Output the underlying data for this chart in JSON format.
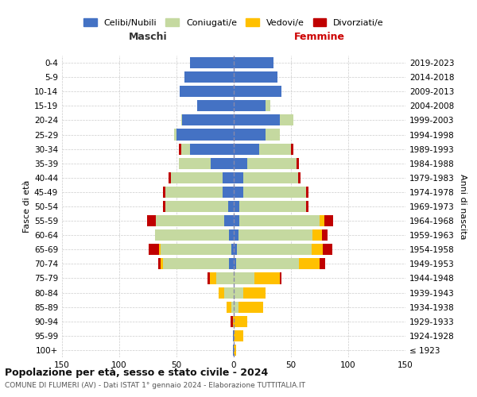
{
  "age_groups": [
    "100+",
    "95-99",
    "90-94",
    "85-89",
    "80-84",
    "75-79",
    "70-74",
    "65-69",
    "60-64",
    "55-59",
    "50-54",
    "45-49",
    "40-44",
    "35-39",
    "30-34",
    "25-29",
    "20-24",
    "15-19",
    "10-14",
    "5-9",
    "0-4"
  ],
  "birth_years": [
    "≤ 1923",
    "1924-1928",
    "1929-1933",
    "1934-1938",
    "1939-1943",
    "1944-1948",
    "1949-1953",
    "1954-1958",
    "1959-1963",
    "1964-1968",
    "1969-1973",
    "1974-1978",
    "1979-1983",
    "1984-1988",
    "1989-1993",
    "1994-1998",
    "1999-2003",
    "2004-2008",
    "2009-2013",
    "2014-2018",
    "2019-2023"
  ],
  "maschi": {
    "celibi": [
      1,
      1,
      0,
      0,
      0,
      0,
      4,
      2,
      4,
      8,
      5,
      10,
      10,
      20,
      38,
      50,
      45,
      32,
      47,
      43,
      38
    ],
    "coniugati": [
      0,
      0,
      0,
      2,
      8,
      15,
      58,
      62,
      65,
      60,
      55,
      50,
      45,
      28,
      8,
      2,
      1,
      0,
      0,
      0,
      0
    ],
    "vedovi": [
      0,
      0,
      1,
      4,
      5,
      6,
      2,
      1,
      0,
      0,
      0,
      0,
      0,
      0,
      0,
      0,
      0,
      0,
      0,
      0,
      0
    ],
    "divorziati": [
      0,
      0,
      2,
      0,
      0,
      2,
      2,
      9,
      0,
      8,
      2,
      2,
      2,
      0,
      2,
      0,
      0,
      0,
      0,
      0,
      0
    ]
  },
  "femmine": {
    "nubili": [
      0,
      0,
      0,
      0,
      0,
      0,
      2,
      3,
      4,
      5,
      5,
      8,
      8,
      12,
      22,
      28,
      40,
      28,
      42,
      38,
      35
    ],
    "coniugate": [
      0,
      0,
      0,
      4,
      8,
      18,
      55,
      65,
      65,
      70,
      58,
      55,
      48,
      43,
      28,
      12,
      12,
      4,
      0,
      0,
      0
    ],
    "vedove": [
      2,
      8,
      12,
      22,
      20,
      22,
      18,
      10,
      8,
      4,
      0,
      0,
      0,
      0,
      0,
      0,
      0,
      0,
      0,
      0,
      0
    ],
    "divorziate": [
      0,
      0,
      0,
      0,
      0,
      2,
      5,
      8,
      5,
      8,
      2,
      2,
      2,
      2,
      2,
      0,
      0,
      0,
      0,
      0,
      0
    ]
  },
  "colors": {
    "celibi_nubili": "#4472c4",
    "coniugati": "#c5d9a0",
    "vedovi": "#ffc000",
    "divorziati": "#c00000"
  },
  "xlim": 150,
  "title": "Popolazione per età, sesso e stato civile - 2024",
  "subtitle": "COMUNE DI FLUMERI (AV) - Dati ISTAT 1° gennaio 2024 - Elaborazione TUTTITALIA.IT",
  "ylabel_left": "Fasce di età",
  "ylabel_right": "Anni di nascita",
  "xlabel_left": "Maschi",
  "xlabel_right": "Femmine",
  "legend_labels": [
    "Celibi/Nubili",
    "Coniugati/e",
    "Vedovi/e",
    "Divorziati/e"
  ]
}
